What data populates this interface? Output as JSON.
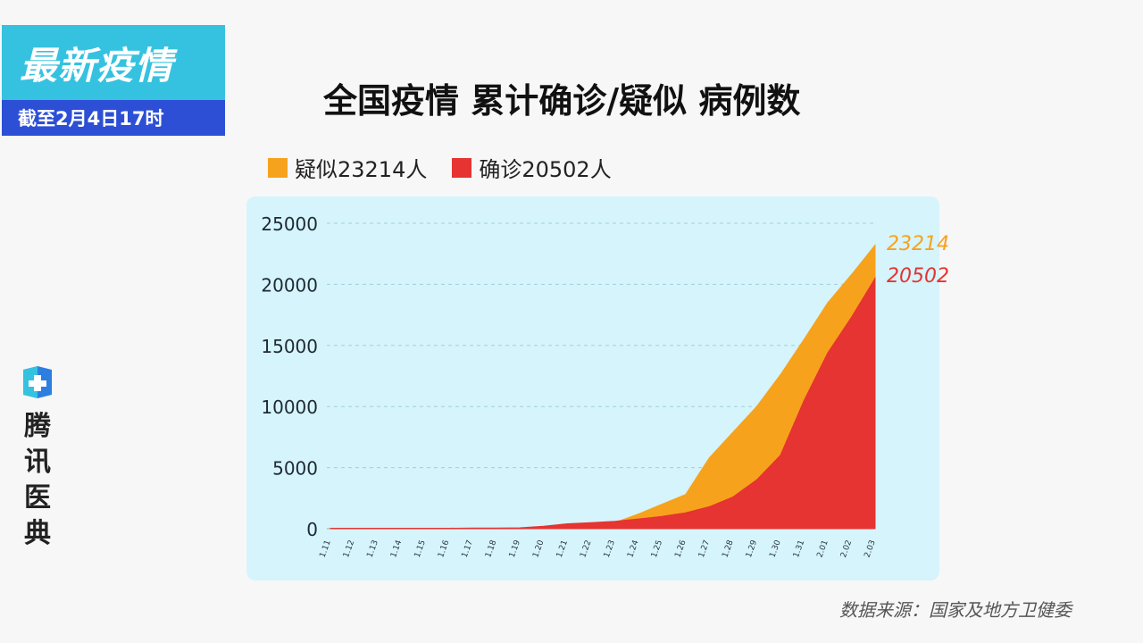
{
  "badge": {
    "headline": "最新疫情",
    "date": "截至2月4日17时"
  },
  "brand": {
    "chars": [
      "腾",
      "讯",
      "医",
      "典"
    ],
    "logo": "tencent-medical-logo-icon"
  },
  "source": "数据来源：国家及地方卫健委",
  "colors": {
    "suspected": "#f7a21c",
    "confirmed": "#e53431",
    "panel": "#d6f4fb",
    "badge_top": "#35c2e0",
    "badge_bottom": "#2c4fd6"
  },
  "chart_data": {
    "type": "area",
    "title": "全国疫情 累计确诊/疑似 病例数",
    "legend": [
      {
        "label": "疑似23214人",
        "color": "#f7a21c"
      },
      {
        "label": "确诊20502人",
        "color": "#e53431"
      }
    ],
    "legend_position": "top-left",
    "categories": [
      "1.11",
      "1.12",
      "1.13",
      "1.14",
      "1.15",
      "1.16",
      "1.17",
      "1.18",
      "1.19",
      "1.20",
      "1.21",
      "1.22",
      "1.23",
      "1.24",
      "1.25",
      "1.26",
      "1.27",
      "1.28",
      "1.29",
      "1.30",
      "1.31",
      "2.01",
      "2.02",
      "2.03"
    ],
    "series": [
      {
        "name": "疑似",
        "color": "#f7a21c",
        "values": [
          0,
          0,
          0,
          0,
          0,
          0,
          0,
          0,
          0,
          0,
          40,
          280,
          500,
          1200,
          2000,
          2800,
          5800,
          7900,
          10000,
          12600,
          15500,
          18500,
          20800,
          23214
        ],
        "end_label": "23214"
      },
      {
        "name": "确诊",
        "color": "#e53431",
        "values": [
          40,
          40,
          40,
          40,
          40,
          40,
          60,
          60,
          70,
          200,
          400,
          500,
          600,
          800,
          1000,
          1300,
          1800,
          2600,
          4000,
          6000,
          10500,
          14400,
          17300,
          20502
        ],
        "end_label": "20502"
      }
    ],
    "yticks": [
      0,
      5000,
      10000,
      15000,
      20000,
      25000
    ],
    "ylim": [
      0,
      25000
    ],
    "grid": true
  }
}
